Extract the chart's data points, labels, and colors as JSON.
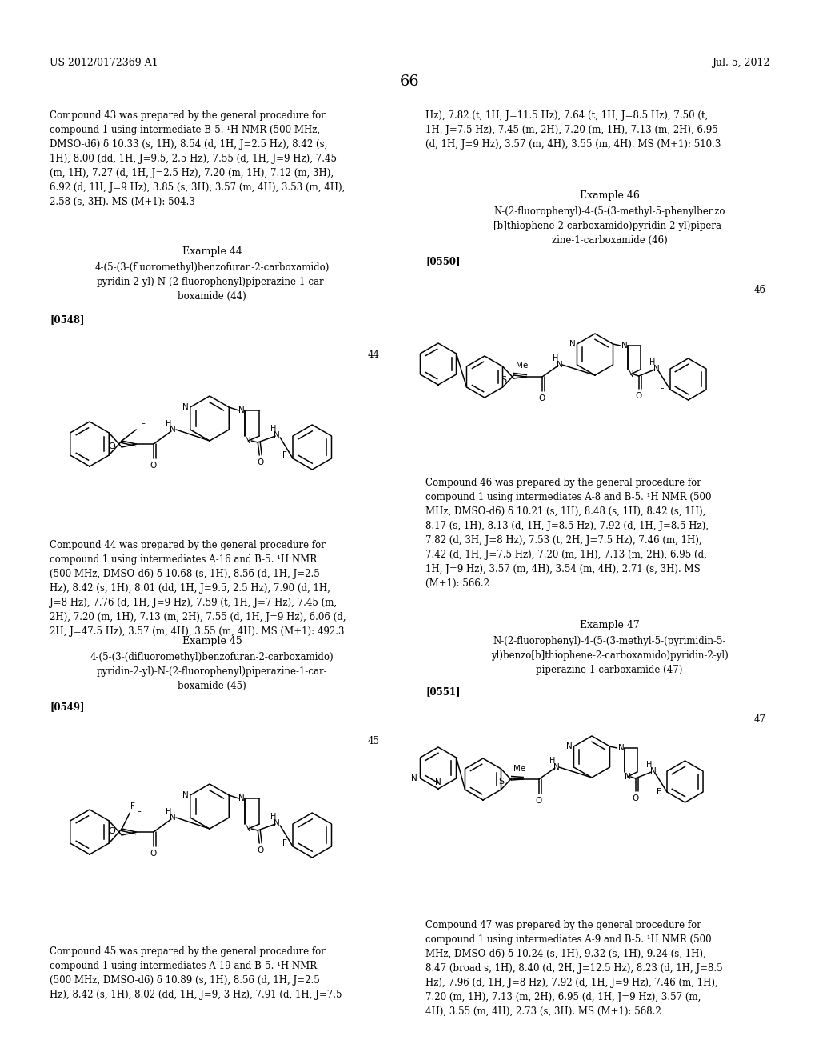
{
  "background_color": "#ffffff",
  "page_header_left": "US 2012/0172369 A1",
  "page_header_right": "Jul. 5, 2012",
  "page_number": "66",
  "compound43_left": "Compound 43 was prepared by the general procedure for\ncompound 1 using intermediate B-5. ¹H NMR (500 MHz,\nDMSO-d6) δ 10.33 (s, 1H), 8.54 (d, 1H, J=2.5 Hz), 8.42 (s,\n1H), 8.00 (dd, 1H, J=9.5, 2.5 Hz), 7.55 (d, 1H, J=9 Hz), 7.45\n(m, 1H), 7.27 (d, 1H, J=2.5 Hz), 7.20 (m, 1H), 7.12 (m, 3H),\n6.92 (d, 1H, J=9 Hz), 3.85 (s, 3H), 3.57 (m, 4H), 3.53 (m, 4H),\n2.58 (s, 3H). MS (M+1): 504.3",
  "compound43_right": "Hz), 7.82 (t, 1H, J=11.5 Hz), 7.64 (t, 1H, J=8.5 Hz), 7.50 (t,\n1H, J=7.5 Hz), 7.45 (m, 2H), 7.20 (m, 1H), 7.13 (m, 2H), 6.95\n(d, 1H, J=9 Hz), 3.57 (m, 4H), 3.55 (m, 4H). MS (M+1): 510.3",
  "ex44_title": "Example 44",
  "ex44_name": "4-(5-(3-(fluoromethyl)benzofuran-2-carboxamido)\npyridin-2-yl)-N-(2-fluorophenyl)piperazine-1-car-\nboxamide (44)",
  "ex44_tag": "[0548]",
  "ex44_num": "44",
  "ex44_body": "Compound 44 was prepared by the general procedure for\ncompound 1 using intermediates A-16 and B-5. ¹H NMR\n(500 MHz, DMSO-d6) δ 10.68 (s, 1H), 8.56 (d, 1H, J=2.5\nHz), 8.42 (s, 1H), 8.01 (dd, 1H, J=9.5, 2.5 Hz), 7.90 (d, 1H,\nJ=8 Hz), 7.76 (d, 1H, J=9 Hz), 7.59 (t, 1H, J=7 Hz), 7.45 (m,\n2H), 7.20 (m, 1H), 7.13 (m, 2H), 7.55 (d, 1H, J=9 Hz), 6.06 (d,\n2H, J=47.5 Hz), 3.57 (m, 4H), 3.55 (m, 4H). MS (M+1): 492.3",
  "ex45_title": "Example 45",
  "ex45_name": "4-(5-(3-(difluoromethyl)benzofuran-2-carboxamido)\npyridin-2-yl)-N-(2-fluorophenyl)piperazine-1-car-\nboxamide (45)",
  "ex45_tag": "[0549]",
  "ex45_num": "45",
  "ex45_body": "Compound 45 was prepared by the general procedure for\ncompound 1 using intermediates A-19 and B-5. ¹H NMR\n(500 MHz, DMSO-d6) δ 10.89 (s, 1H), 8.56 (d, 1H, J=2.5\nHz), 8.42 (s, 1H), 8.02 (dd, 1H, J=9, 3 Hz), 7.91 (d, 1H, J=7.5",
  "ex46_title": "Example 46",
  "ex46_name": "N-(2-fluorophenyl)-4-(5-(3-methyl-5-phenylbenzo\n[b]thiophene-2-carboxamido)pyridin-2-yl)pipera-\nzine-1-carboxamide (46)",
  "ex46_tag": "[0550]",
  "ex46_num": "46",
  "ex46_body": "Compound 46 was prepared by the general procedure for\ncompound 1 using intermediates A-8 and B-5. ¹H NMR (500\nMHz, DMSO-d6) δ 10.21 (s, 1H), 8.48 (s, 1H), 8.42 (s, 1H),\n8.17 (s, 1H), 8.13 (d, 1H, J=8.5 Hz), 7.92 (d, 1H, J=8.5 Hz),\n7.82 (d, 3H, J=8 Hz), 7.53 (t, 2H, J=7.5 Hz), 7.46 (m, 1H),\n7.42 (d, 1H, J=7.5 Hz), 7.20 (m, 1H), 7.13 (m, 2H), 6.95 (d,\n1H, J=9 Hz), 3.57 (m, 4H), 3.54 (m, 4H), 2.71 (s, 3H). MS\n(M+1): 566.2",
  "ex47_title": "Example 47",
  "ex47_name": "N-(2-fluorophenyl)-4-(5-(3-methyl-5-(pyrimidin-5-\nyl)benzo[b]thiophene-2-carboxamido)pyridin-2-yl)\npiperazine-1-carboxamide (47)",
  "ex47_tag": "[0551]",
  "ex47_num": "47",
  "ex47_body": "Compound 47 was prepared by the general procedure for\ncompound 1 using intermediates A-9 and B-5. ¹H NMR (500\nMHz, DMSO-d6) δ 10.24 (s, 1H), 9.32 (s, 1H), 9.24 (s, 1H),\n8.47 (broad s, 1H), 8.40 (d, 2H, J=12.5 Hz), 8.23 (d, 1H, J=8.5\nHz), 7.96 (d, 1H, J=8 Hz), 7.92 (d, 1H, J=9 Hz), 7.46 (m, 1H),\n7.20 (m, 1H), 7.13 (m, 2H), 6.95 (d, 1H, J=9 Hz), 3.57 (m,\n4H), 3.55 (m, 4H), 2.73 (s, 3H). MS (M+1): 568.2"
}
